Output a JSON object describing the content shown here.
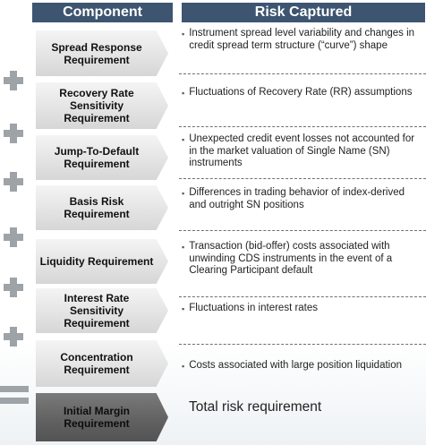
{
  "headers": {
    "component": "Component",
    "risk": "Risk Captured"
  },
  "rows": [
    {
      "component": "Spread Response Requirement",
      "risk": "Instrument spread level variability and changes in credit spread term structure (“curve”) shape"
    },
    {
      "component": "Recovery Rate Sensitivity Requirement",
      "risk": "Fluctuations of Recovery Rate (RR) assumptions"
    },
    {
      "component": "Jump-To-Default Requirement",
      "risk": "Unexpected credit event losses not accounted for in the market valuation of Single Name (SN) instruments"
    },
    {
      "component": "Basis Risk Requirement",
      "risk": "Differences in trading behavior of index-derived and outright SN positions"
    },
    {
      "component": "Liquidity Requirement",
      "risk": "Transaction (bid-offer) costs associated with unwinding CDS instruments in the event of a Clearing Participant default"
    },
    {
      "component": "Interest Rate Sensitivity Requirement",
      "risk": "Fluctuations in interest rates"
    },
    {
      "component": "Concentration Requirement",
      "risk": "Costs associated with large position liquidation"
    }
  ],
  "total": {
    "component": "Initial Margin Requirement",
    "risk": "Total risk requirement"
  },
  "bullet": "▪",
  "colors": {
    "header": "#3d5570",
    "operator": "#9ea3a8",
    "chevron": "#e4e4e4",
    "final_chevron": "#606060"
  }
}
